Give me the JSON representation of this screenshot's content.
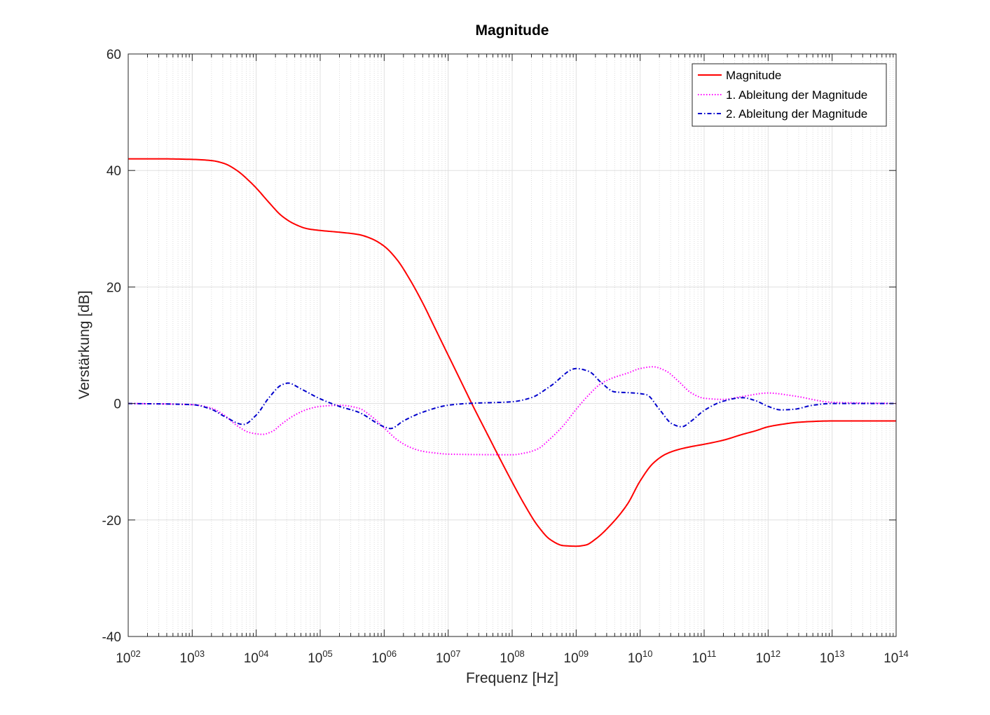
{
  "chart_data": {
    "type": "line",
    "title": "Magnitude",
    "xlabel": "Frequenz [Hz]",
    "ylabel": "Verstärkung [dB]",
    "xscale": "log",
    "xlim": [
      100,
      100000000000000
    ],
    "ylim": [
      -40,
      60
    ],
    "grid": true,
    "minor_grid": true,
    "legend_position": "top-right",
    "x_ticks": [
      {
        "value": 100,
        "base": "10",
        "exp": "02"
      },
      {
        "value": 1000,
        "base": "10",
        "exp": "03"
      },
      {
        "value": 10000,
        "base": "10",
        "exp": "04"
      },
      {
        "value": 100000,
        "base": "10",
        "exp": "05"
      },
      {
        "value": 1000000,
        "base": "10",
        "exp": "06"
      },
      {
        "value": 10000000,
        "base": "10",
        "exp": "07"
      },
      {
        "value": 100000000,
        "base": "10",
        "exp": "08"
      },
      {
        "value": 1000000000,
        "base": "10",
        "exp": "09"
      },
      {
        "value": 10000000000,
        "base": "10",
        "exp": "10"
      },
      {
        "value": 100000000000,
        "base": "10",
        "exp": "11"
      },
      {
        "value": 1000000000000,
        "base": "10",
        "exp": "12"
      },
      {
        "value": 10000000000000,
        "base": "10",
        "exp": "13"
      },
      {
        "value": 100000000000000,
        "base": "10",
        "exp": "14"
      }
    ],
    "y_ticks": [
      {
        "value": -40,
        "label": "-40"
      },
      {
        "value": -20,
        "label": "-20"
      },
      {
        "value": 0,
        "label": "0"
      },
      {
        "value": 20,
        "label": "20"
      },
      {
        "value": 40,
        "label": "40"
      },
      {
        "value": 60,
        "label": "60"
      }
    ],
    "series": [
      {
        "name": "Magnitude",
        "color": "#ff0000",
        "dash": "solid",
        "x": [
          100,
          316,
          1000,
          2000,
          3162,
          5000,
          7943,
          10000,
          15850,
          25119,
          39811,
          63096,
          100000,
          199526,
          398107,
          630957,
          1000000,
          1584893,
          2511886,
          3981072,
          6309573,
          10000000,
          15848932,
          25118864,
          39810717,
          63095734,
          100000000,
          158489319,
          251188643,
          398107171,
          630957344,
          1000000000,
          1412537545,
          1995262315,
          3162277660,
          6309573445,
          10000000000,
          15848931925,
          25118864315,
          39810717055,
          63095734448,
          100000000000,
          199526231497,
          398107170553,
          630957344480,
          1000000000000,
          1584893192461,
          3162277660168,
          10000000000000,
          100000000000000
        ],
        "y": [
          42,
          42,
          41.9,
          41.7,
          41.2,
          40,
          38.1,
          37,
          34.5,
          32.2,
          30.8,
          30,
          29.7,
          29.4,
          29,
          28.3,
          27,
          24.7,
          21.3,
          17.3,
          12.8,
          8.3,
          3.8,
          -0.7,
          -5,
          -9.3,
          -13.5,
          -17.5,
          -21,
          -23.4,
          -24.4,
          -24.5,
          -24.3,
          -23.3,
          -21.3,
          -17.3,
          -13.3,
          -10.3,
          -8.7,
          -7.9,
          -7.4,
          -7,
          -6.3,
          -5.3,
          -4.7,
          -4,
          -3.6,
          -3.2,
          -3,
          -3
        ]
      },
      {
        "name": "1. Ableitung der Magnitude",
        "color": "#ff00ff",
        "dash": "dotted",
        "x": [
          100,
          1000,
          2000,
          3162,
          5012,
          7943,
          12589,
          17783,
          25119,
          39811,
          63096,
          100000,
          199526,
          398107,
          630957,
          1000000,
          1584893,
          2511886,
          3981072,
          6309573,
          10000000,
          100000000,
          158489319,
          251188643,
          398107171,
          630957344,
          1000000000,
          1584893192,
          2511886432,
          3981071706,
          6309573445,
          10000000000,
          15848931925,
          25118864315,
          39810717055,
          63095734448,
          100000000000,
          199526231497,
          398107170553,
          1000000000000,
          2511886431510,
          10000000000000,
          100000000000000
        ],
        "y": [
          0,
          -0.2,
          -0.8,
          -2,
          -3.8,
          -5,
          -5.3,
          -4.8,
          -3.5,
          -2,
          -1,
          -0.5,
          -0.3,
          -0.8,
          -2.2,
          -4.2,
          -6.2,
          -7.5,
          -8.2,
          -8.5,
          -8.7,
          -8.8,
          -8.5,
          -7.8,
          -6,
          -3.8,
          -1,
          1.5,
          3.5,
          4.5,
          5.2,
          6,
          6.3,
          5.6,
          3.8,
          1.8,
          0.9,
          0.7,
          1.2,
          1.8,
          1.3,
          0.2,
          0
        ]
      },
      {
        "name": "2. Ableitung der Magnitude",
        "color": "#0000cc",
        "dash": "dash-dot",
        "x": [
          100,
          1000,
          2000,
          3162,
          6310,
          10000,
          15849,
          25119,
          31623,
          50119,
          100000,
          199526,
          398107,
          1000000,
          1258925,
          1995262,
          3981072,
          10000000,
          19952623,
          100000000,
          199526231,
          398107171,
          1000000000,
          1584893192,
          2511886432,
          3981071706,
          7943282347,
          12589254118,
          19952623150,
          31622776602,
          44668359215,
          63095734448,
          100000000000,
          199526231497,
          398107170553,
          630957344480,
          1000000000000,
          1584893192461,
          2511886431510,
          5011872336273,
          10000000000000,
          100000000000000
        ],
        "y": [
          0,
          -0.2,
          -1,
          -2.2,
          -3.6,
          -2,
          1,
          3.2,
          3.5,
          2.5,
          0.8,
          -0.5,
          -1.5,
          -4,
          -4.3,
          -3,
          -1.5,
          -0.3,
          0,
          0.3,
          1,
          3,
          6,
          5.5,
          3.5,
          2,
          1.8,
          1.5,
          -1,
          -3.5,
          -4,
          -3,
          -1.2,
          0.4,
          1,
          0.5,
          -0.5,
          -1.1,
          -1,
          -0.3,
          0,
          0
        ]
      }
    ]
  }
}
